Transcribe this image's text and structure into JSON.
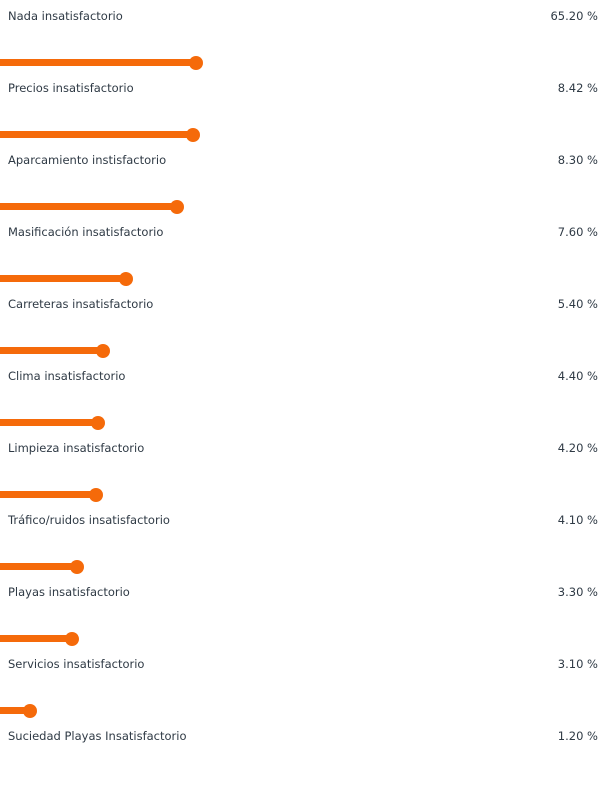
{
  "chart_data": {
    "type": "bar",
    "orientation": "horizontal",
    "categories": [
      "Nada insatisfactorio",
      "Precios insatisfactorio",
      "Aparcamiento instisfactorio",
      "Masificación insatisfactorio",
      "Carreteras insatisfactorio",
      "Clima insatisfactorio",
      "Limpieza insatisfactorio",
      "Tráfico/ruidos insatisfactorio",
      "Playas insatisfactorio",
      "Servicios insatisfactorio",
      "Suciedad Playas Insatisfactorio"
    ],
    "values": [
      65.2,
      8.42,
      8.3,
      7.6,
      5.4,
      4.4,
      4.2,
      4.1,
      3.3,
      3.1,
      1.2
    ],
    "value_labels": [
      "65.20 %",
      "8.42 %",
      "8.30 %",
      "7.60 %",
      "5.40 %",
      "4.40 %",
      "4.20 %",
      "4.10 %",
      "3.30 %",
      "3.10 %",
      "1.20 %"
    ],
    "bar_color": "#f56a0a",
    "grid": false,
    "legend": "none"
  }
}
